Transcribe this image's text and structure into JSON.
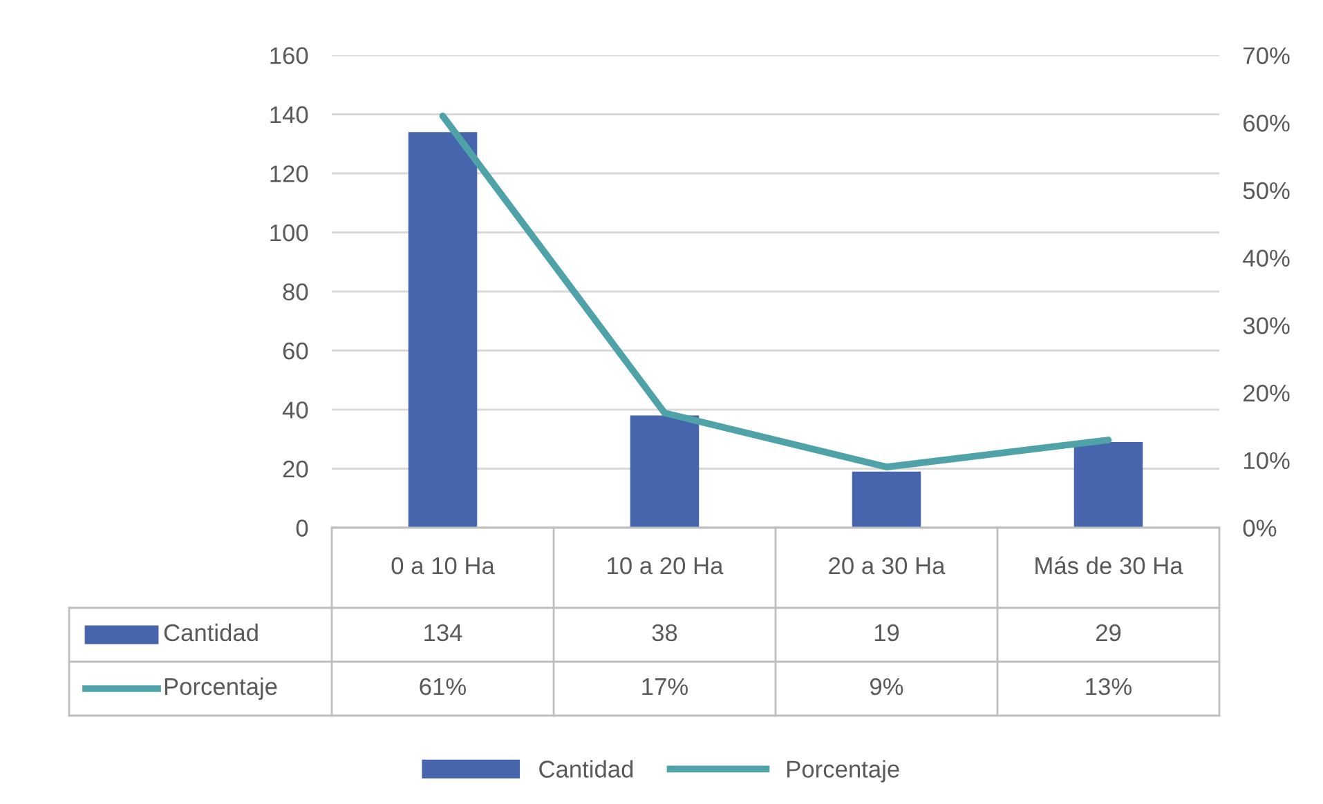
{
  "chart_data": {
    "type": "bar",
    "categories": [
      "0 a 10 Ha",
      "10 a 20 Ha",
      "20 a 30 Ha",
      "Más de 30 Ha"
    ],
    "series": [
      {
        "name": "Cantidad",
        "color": "#4765ad",
        "values": [
          134,
          38,
          19,
          29
        ],
        "value_labels": [
          "134",
          "38",
          "19",
          "29"
        ]
      },
      {
        "name": "Porcentaje",
        "type": "line",
        "axis": "y2",
        "color": "#4fa3a8",
        "values": [
          61,
          17,
          9,
          13
        ],
        "value_labels": [
          "61%",
          "17%",
          "9%",
          "13%"
        ]
      }
    ],
    "ylim": [
      0,
      160
    ],
    "yticks": [
      0,
      20,
      40,
      60,
      80,
      100,
      120,
      140,
      160
    ],
    "y2lim": [
      0,
      70
    ],
    "y2ticks": [
      {
        "value": 0,
        "label": "0%"
      },
      {
        "value": 10,
        "label": "10%"
      },
      {
        "value": 20,
        "label": "20%"
      },
      {
        "value": 30,
        "label": "30%"
      },
      {
        "value": 40,
        "label": "40%"
      },
      {
        "value": 50,
        "label": "50%"
      },
      {
        "value": 60,
        "label": "60%"
      },
      {
        "value": 70,
        "label": "70%"
      }
    ],
    "grid": "y",
    "legend": "bottom"
  }
}
